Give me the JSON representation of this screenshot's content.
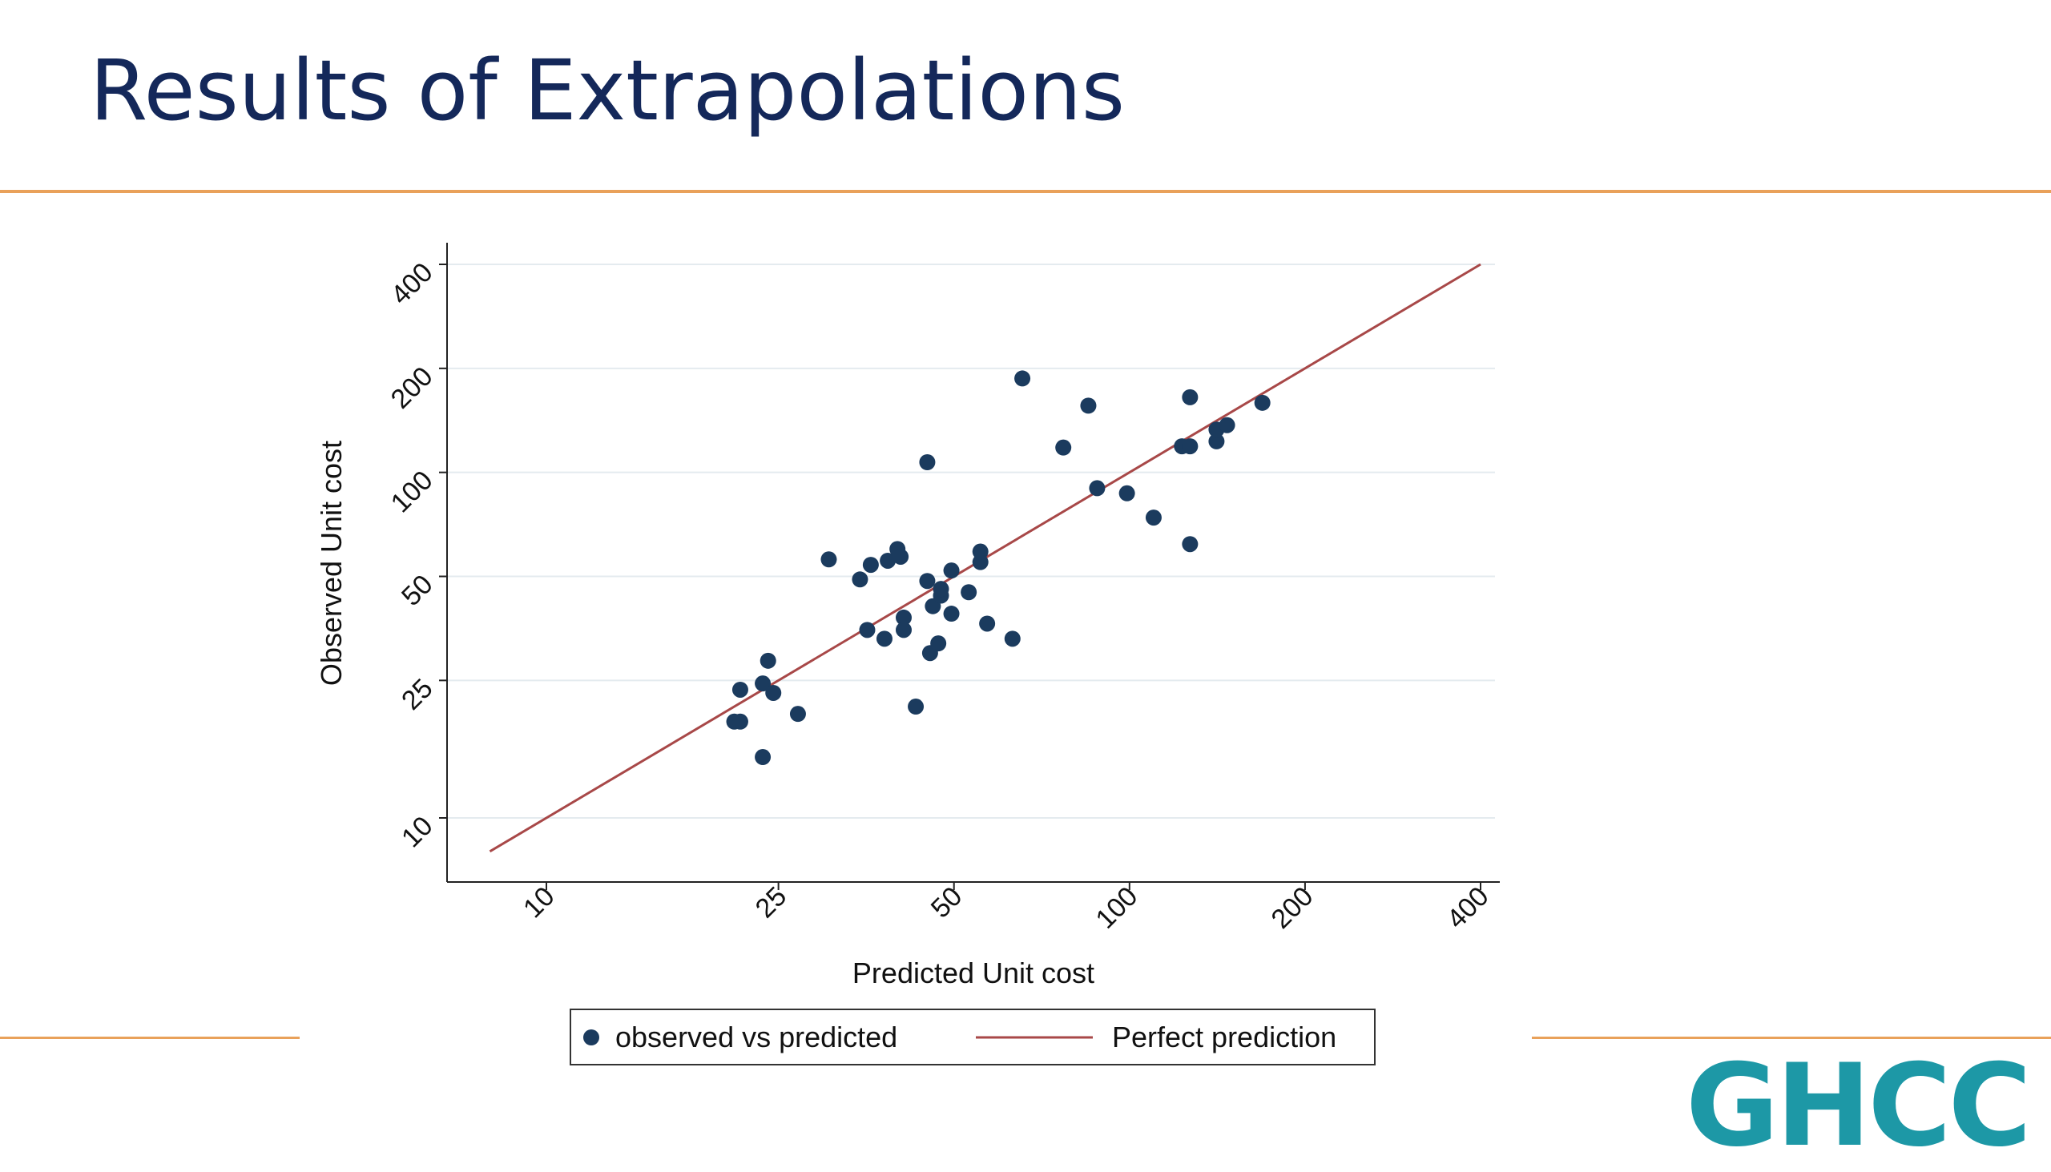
{
  "slide": {
    "title": "Results of Extrapolations",
    "logo_text": "GHCC"
  },
  "colors": {
    "title": "#14285a",
    "accent_rule": "#e9a15a",
    "points": "#1b3b5e",
    "reference_line": "#a84848",
    "logo": "#1d98a6"
  },
  "chart_data": {
    "type": "scatter",
    "xlabel": "Predicted Unit cost",
    "ylabel": "Observed Unit cost",
    "x_scale": "log",
    "y_scale": "log",
    "xlim": [
      8,
      400
    ],
    "ylim": [
      8,
      400
    ],
    "x_ticks": [
      10,
      25,
      50,
      100,
      200,
      400
    ],
    "y_ticks": [
      10,
      25,
      50,
      100,
      200,
      400
    ],
    "grid": "horizontal",
    "legend_position": "bottom",
    "legend": [
      "observed vs predicted",
      "Perfect prediction"
    ],
    "series": [
      {
        "name": "observed vs predicted",
        "kind": "points",
        "points": [
          [
            21,
            19
          ],
          [
            21.5,
            19
          ],
          [
            21.5,
            23.5
          ],
          [
            23.5,
            15
          ],
          [
            23.5,
            24.5
          ],
          [
            24,
            28.5
          ],
          [
            24.5,
            23
          ],
          [
            27,
            20
          ],
          [
            30.5,
            56
          ],
          [
            34.5,
            49
          ],
          [
            35.5,
            35
          ],
          [
            36,
            54
          ],
          [
            38,
            33
          ],
          [
            38.5,
            55.5
          ],
          [
            40,
            60
          ],
          [
            40.5,
            57
          ],
          [
            41,
            38
          ],
          [
            41,
            35
          ],
          [
            43,
            21
          ],
          [
            45,
            48.5
          ],
          [
            45,
            107
          ],
          [
            45.5,
            30
          ],
          [
            46,
            41
          ],
          [
            47,
            32
          ],
          [
            47.5,
            44
          ],
          [
            47.5,
            46
          ],
          [
            49.5,
            39
          ],
          [
            49.5,
            52
          ],
          [
            53,
            45
          ],
          [
            55.5,
            55
          ],
          [
            55.5,
            59
          ],
          [
            57,
            36.5
          ],
          [
            63,
            33
          ],
          [
            65.5,
            187
          ],
          [
            77,
            118
          ],
          [
            85,
            156
          ],
          [
            88,
            90
          ],
          [
            99,
            87
          ],
          [
            110,
            74
          ],
          [
            123,
            119
          ],
          [
            127,
            62
          ],
          [
            127,
            119
          ],
          [
            127,
            165
          ],
          [
            141,
            123
          ],
          [
            141,
            133
          ],
          [
            147,
            137
          ],
          [
            169,
            159
          ]
        ]
      },
      {
        "name": "Perfect prediction",
        "kind": "line",
        "points": [
          [
            8,
            8
          ],
          [
            400,
            400
          ]
        ]
      }
    ]
  }
}
